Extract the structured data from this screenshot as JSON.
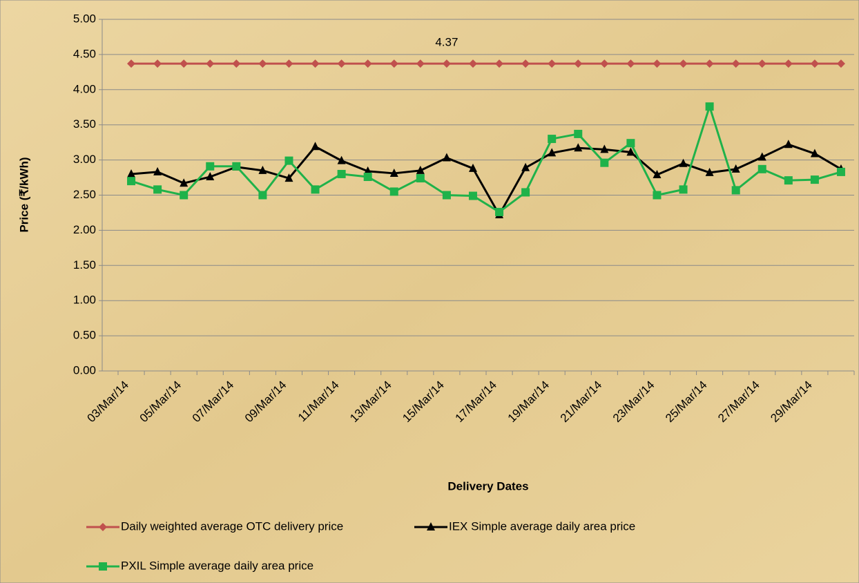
{
  "chart_data": {
    "type": "line",
    "x_label": "Delivery Dates",
    "y_label": "Price (₹/kWh)",
    "categories": [
      "03/Mar/14",
      null,
      "05/Mar/14",
      null,
      "07/Mar/14",
      null,
      "09/Mar/14",
      null,
      "11/Mar/14",
      null,
      "13/Mar/14",
      null,
      "15/Mar/14",
      null,
      "17/Mar/14",
      null,
      "19/Mar/14",
      null,
      "21/Mar/14",
      null,
      "23/Mar/14",
      null,
      "25/Mar/14",
      null,
      "27/Mar/14",
      null,
      "29/Mar/14",
      null
    ],
    "series": [
      {
        "name": "Daily weighted average OTC delivery price",
        "color": "#c0504d",
        "marker": "diamond",
        "values": [
          4.37,
          4.37,
          4.37,
          4.37,
          4.37,
          4.37,
          4.37,
          4.37,
          4.37,
          4.37,
          4.37,
          4.37,
          4.37,
          4.37,
          4.37,
          4.37,
          4.37,
          4.37,
          4.37,
          4.37,
          4.37,
          4.37,
          4.37,
          4.37,
          4.37,
          4.37,
          4.37,
          4.37
        ],
        "value_labels": [
          null,
          null,
          null,
          null,
          null,
          null,
          null,
          null,
          null,
          null,
          null,
          null,
          "4.37",
          null,
          null,
          null,
          null,
          null,
          null,
          null,
          null,
          null,
          null,
          null,
          null,
          null,
          null,
          null
        ]
      },
      {
        "name": "IEX Simple average daily area price",
        "color": "#000000",
        "marker": "triangle",
        "values": [
          2.8,
          2.83,
          2.67,
          2.76,
          2.9,
          2.85,
          2.74,
          3.19,
          2.99,
          2.84,
          2.81,
          2.85,
          3.03,
          2.88,
          2.22,
          2.89,
          3.1,
          3.17,
          3.15,
          3.11,
          2.79,
          2.95,
          2.82,
          2.87,
          3.04,
          3.22,
          3.09,
          2.87
        ]
      },
      {
        "name": "PXIL Simple average daily area price",
        "color": "#1fb24a",
        "marker": "square",
        "values": [
          2.7,
          2.58,
          2.5,
          2.91,
          2.91,
          2.5,
          2.99,
          2.58,
          2.8,
          2.76,
          2.55,
          2.74,
          2.5,
          2.49,
          2.26,
          2.54,
          3.3,
          3.37,
          2.96,
          3.24,
          2.5,
          2.58,
          3.76,
          2.57,
          2.87,
          2.71,
          2.72,
          2.83
        ]
      }
    ],
    "ylim": [
      0,
      5
    ],
    "yticks": [
      {
        "value": 0,
        "label": "0.00"
      },
      {
        "value": 0.5,
        "label": "0.50"
      },
      {
        "value": 1,
        "label": "1.00"
      },
      {
        "value": 1.5,
        "label": "1.50"
      },
      {
        "value": 2,
        "label": "2.00"
      },
      {
        "value": 2.5,
        "label": "2.50"
      },
      {
        "value": 3,
        "label": "3.00"
      },
      {
        "value": 3.5,
        "label": "3.50"
      },
      {
        "value": 4,
        "label": "4.00"
      },
      {
        "value": 4.5,
        "label": "4.50"
      },
      {
        "value": 5,
        "label": "5.00"
      }
    ],
    "grid": true
  }
}
